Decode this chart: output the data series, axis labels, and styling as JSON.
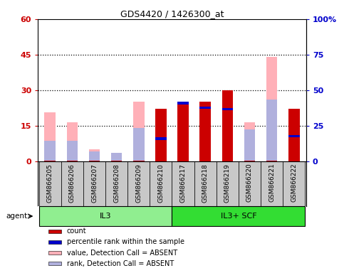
{
  "title": "GDS4420 / 1426300_at",
  "categories": [
    "GSM866205",
    "GSM866206",
    "GSM866207",
    "GSM866208",
    "GSM866209",
    "GSM866210",
    "GSM866217",
    "GSM866218",
    "GSM866219",
    "GSM866220",
    "GSM866221",
    "GSM866222"
  ],
  "groups": [
    {
      "label": "IL3",
      "indices": [
        0,
        1,
        2,
        3,
        4,
        5
      ],
      "color": "#90EE90"
    },
    {
      "label": "IL3+ SCF",
      "indices": [
        6,
        7,
        8,
        9,
        10,
        11
      ],
      "color": "#33DD33"
    }
  ],
  "pink_bars": [
    20.5,
    16.5,
    5.0,
    3.0,
    25.0,
    8.0,
    0.0,
    0.0,
    0.0,
    16.5,
    44.0,
    0.0
  ],
  "red_bars": [
    0.3,
    0.3,
    0.3,
    0.3,
    0.3,
    22.0,
    25.0,
    25.0,
    30.0,
    0.3,
    0.3,
    22.0
  ],
  "lightblue_bars": [
    8.5,
    8.5,
    4.0,
    3.5,
    14.0,
    0.0,
    0.0,
    0.0,
    0.0,
    13.5,
    26.0,
    0.0
  ],
  "blue_bars_present": [
    false,
    false,
    false,
    false,
    false,
    true,
    true,
    true,
    true,
    false,
    false,
    true
  ],
  "blue_bars": [
    0.0,
    0.0,
    0.0,
    0.0,
    0.0,
    9.5,
    24.5,
    22.5,
    22.0,
    0.0,
    0.0,
    10.5
  ],
  "blue_bar_thickness": 1.0,
  "ylim_left": [
    0,
    60
  ],
  "ylim_right": [
    0,
    100
  ],
  "yticks_left": [
    0,
    15,
    30,
    45,
    60
  ],
  "yticks_right": [
    0,
    25,
    50,
    75,
    100
  ],
  "ytick_labels_left": [
    "0",
    "15",
    "30",
    "45",
    "60"
  ],
  "ytick_labels_right": [
    "0",
    "25",
    "50",
    "75",
    "100%"
  ],
  "bar_width": 0.5,
  "colors": {
    "red": "#CC0000",
    "pink": "#FFB0B8",
    "blue": "#0000CC",
    "lightblue": "#B0B0DD",
    "left_tick": "#CC0000",
    "right_tick": "#0000CC",
    "bg_plot": "#FFFFFF",
    "bg_labels": "#C8C8C8"
  },
  "legend_items": [
    {
      "color": "#CC0000",
      "label": "count"
    },
    {
      "color": "#0000CC",
      "label": "percentile rank within the sample"
    },
    {
      "color": "#FFB0B8",
      "label": "value, Detection Call = ABSENT"
    },
    {
      "color": "#B0B0DD",
      "label": "rank, Detection Call = ABSENT"
    }
  ],
  "dotted_lines": [
    15,
    30,
    45
  ],
  "agent_label": "agent"
}
